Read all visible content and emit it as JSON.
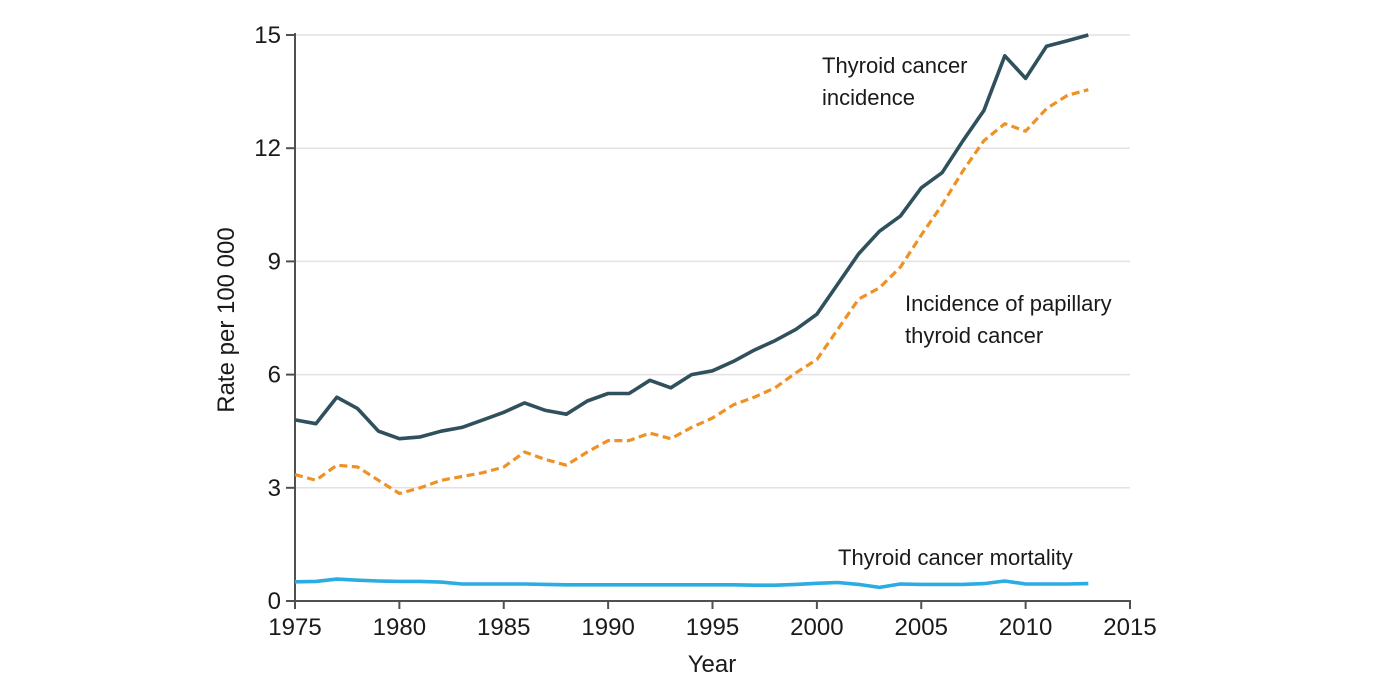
{
  "figure": {
    "y_axis_title": "Rate per 100 000",
    "x_axis_title": "Year",
    "annotations": {
      "incidence": {
        "line1": "Thyroid cancer",
        "line2": "incidence"
      },
      "papillary": {
        "line1": "Incidence of papillary",
        "line2": "thyroid cancer"
      },
      "mortality": {
        "line1": "Thyroid cancer mortality"
      }
    },
    "colors": {
      "incidence_line": "#30505C",
      "papillary_line": "#EF9125",
      "mortality_line": "#2BACE2",
      "axis": "#4E5052",
      "gridline": "#E2E2E2",
      "text": "#1A1A1A",
      "background": "#FFFFFF"
    }
  },
  "chart_data": {
    "type": "line",
    "title": "",
    "xlabel": "Year",
    "ylabel": "Rate per 100 000",
    "xlim": [
      1975,
      2015
    ],
    "ylim": [
      0,
      15
    ],
    "x_ticks": [
      1975,
      1980,
      1985,
      1990,
      1995,
      2000,
      2005,
      2010,
      2015
    ],
    "y_ticks": [
      0,
      3,
      6,
      9,
      12,
      15
    ],
    "grid": "horizontal-only",
    "legend": "inline-text-annotations",
    "x": [
      1975,
      1976,
      1977,
      1978,
      1979,
      1980,
      1981,
      1982,
      1983,
      1984,
      1985,
      1986,
      1987,
      1988,
      1989,
      1990,
      1991,
      1992,
      1993,
      1994,
      1995,
      1996,
      1997,
      1998,
      1999,
      2000,
      2001,
      2002,
      2003,
      2004,
      2005,
      2006,
      2007,
      2008,
      2009,
      2010,
      2011,
      2012,
      2013
    ],
    "series": [
      {
        "id": "incidence",
        "name": "Thyroid cancer incidence",
        "style": "solid",
        "color": "#30505C",
        "width": 3.6,
        "values": [
          4.8,
          4.7,
          5.4,
          5.1,
          4.5,
          4.3,
          4.35,
          4.5,
          4.6,
          4.8,
          5.0,
          5.25,
          5.05,
          4.95,
          5.3,
          5.5,
          5.5,
          5.85,
          5.65,
          6.0,
          6.1,
          6.35,
          6.65,
          6.9,
          7.2,
          7.6,
          8.4,
          9.2,
          9.8,
          10.2,
          10.95,
          11.35,
          12.2,
          13.0,
          14.45,
          13.85,
          14.7,
          14.85,
          15.0
        ]
      },
      {
        "id": "papillary",
        "name": "Incidence of papillary thyroid cancer",
        "style": "dashed",
        "color": "#EF9125",
        "width": 3.2,
        "values": [
          3.35,
          3.2,
          3.6,
          3.55,
          3.2,
          2.85,
          3.0,
          3.2,
          3.3,
          3.4,
          3.55,
          3.95,
          3.75,
          3.6,
          3.95,
          4.25,
          4.25,
          4.45,
          4.3,
          4.6,
          4.85,
          5.2,
          5.4,
          5.65,
          6.05,
          6.4,
          7.2,
          8.0,
          8.3,
          8.85,
          9.7,
          10.5,
          11.4,
          12.2,
          12.65,
          12.45,
          13.05,
          13.4,
          13.55
        ]
      },
      {
        "id": "mortality",
        "name": "Thyroid cancer mortality",
        "style": "solid",
        "color": "#2BACE2",
        "width": 3.6,
        "values": [
          0.51,
          0.52,
          0.58,
          0.55,
          0.53,
          0.52,
          0.52,
          0.5,
          0.45,
          0.45,
          0.45,
          0.45,
          0.44,
          0.43,
          0.43,
          0.43,
          0.43,
          0.43,
          0.43,
          0.43,
          0.43,
          0.43,
          0.42,
          0.42,
          0.44,
          0.47,
          0.49,
          0.44,
          0.36,
          0.45,
          0.44,
          0.44,
          0.44,
          0.46,
          0.53,
          0.45,
          0.45,
          0.45,
          0.46
        ]
      }
    ]
  }
}
